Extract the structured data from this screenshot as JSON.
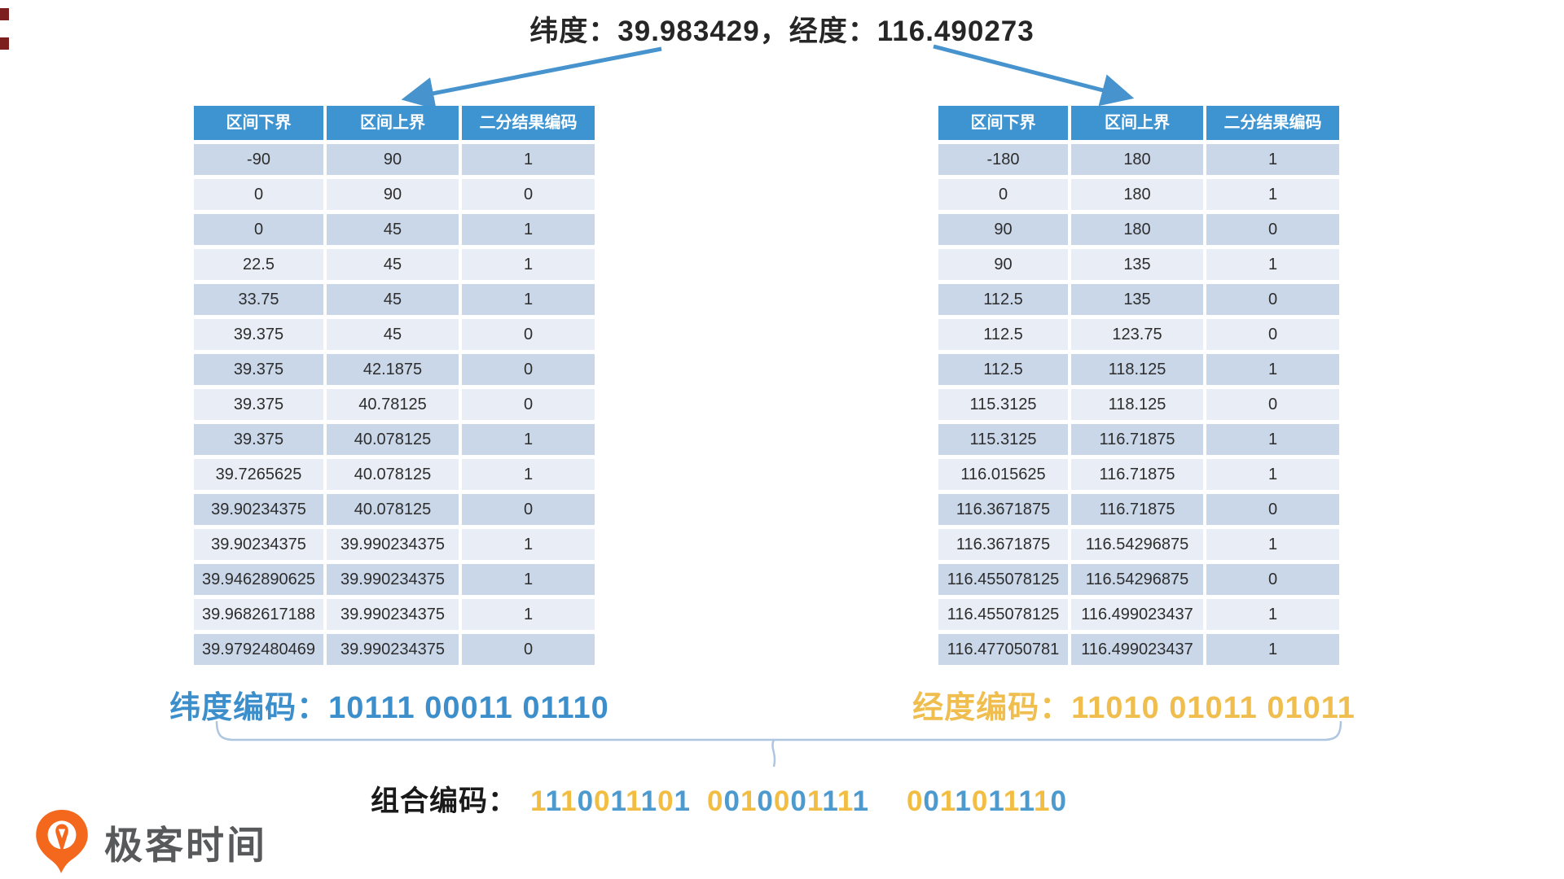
{
  "title": "纬度：39.983429，经度：116.490273",
  "table_headers": [
    "区间下界",
    "区间上界",
    "二分结果编码"
  ],
  "latitude_table": {
    "rows": [
      [
        "-90",
        "90",
        "1"
      ],
      [
        "0",
        "90",
        "0"
      ],
      [
        "0",
        "45",
        "1"
      ],
      [
        "22.5",
        "45",
        "1"
      ],
      [
        "33.75",
        "45",
        "1"
      ],
      [
        "39.375",
        "45",
        "0"
      ],
      [
        "39.375",
        "42.1875",
        "0"
      ],
      [
        "39.375",
        "40.78125",
        "0"
      ],
      [
        "39.375",
        "40.078125",
        "1"
      ],
      [
        "39.7265625",
        "40.078125",
        "1"
      ],
      [
        "39.90234375",
        "40.078125",
        "0"
      ],
      [
        "39.90234375",
        "39.990234375",
        "1"
      ],
      [
        "39.9462890625",
        "39.990234375",
        "1"
      ],
      [
        "39.9682617188",
        "39.990234375",
        "1"
      ],
      [
        "39.9792480469",
        "39.990234375",
        "0"
      ]
    ]
  },
  "longitude_table": {
    "rows": [
      [
        "-180",
        "180",
        "1"
      ],
      [
        "0",
        "180",
        "1"
      ],
      [
        "90",
        "180",
        "0"
      ],
      [
        "90",
        "135",
        "1"
      ],
      [
        "112.5",
        "135",
        "0"
      ],
      [
        "112.5",
        "123.75",
        "0"
      ],
      [
        "112.5",
        "118.125",
        "1"
      ],
      [
        "115.3125",
        "118.125",
        "0"
      ],
      [
        "115.3125",
        "116.71875",
        "1"
      ],
      [
        "116.015625",
        "116.71875",
        "1"
      ],
      [
        "116.3671875",
        "116.71875",
        "0"
      ],
      [
        "116.3671875",
        "116.54296875",
        "1"
      ],
      [
        "116.455078125",
        "116.54296875",
        "0"
      ],
      [
        "116.455078125",
        "116.499023437",
        "1"
      ],
      [
        "116.477050781",
        "116.499023437",
        "1"
      ]
    ]
  },
  "latitude_code": "纬度编码：10111 00011 01110",
  "longitude_code": "经度编码：11010 01011 01011",
  "combined": {
    "label": "组合编码：",
    "groups": [
      {
        "bits": "1110011101",
        "srcs": [
          "lon",
          "lat",
          "lon",
          "lat",
          "lon",
          "lat",
          "lon",
          "lat",
          "lon",
          "lat"
        ]
      },
      {
        "bits": "0010001111",
        "srcs": [
          "lon",
          "lat",
          "lon",
          "lat",
          "lon",
          "lat",
          "lon",
          "lat",
          "lon",
          "lat"
        ]
      },
      {
        "bits": "0011011110",
        "srcs": [
          "lon",
          "lat",
          "lon",
          "lat",
          "lon",
          "lat",
          "lon",
          "lat",
          "lon",
          "lat"
        ]
      }
    ]
  },
  "logo": {
    "text": "极客时间",
    "icon": "geektime-pin-icon"
  },
  "colors": {
    "header_blue": "#3E94D1",
    "row_dark": "#CAD7E9",
    "row_light": "#E9EDF5",
    "arrow_blue": "#4693CE",
    "latitude_blue": "#3D8FCC",
    "longitude_gold": "#EFBE4E",
    "bit_longitude": "#F2BD43",
    "bit_latitude": "#4D9ACF",
    "brace_blue": "#AEC6DF",
    "logo_orange": "#F4681D",
    "logo_text_gray": "#58595B"
  }
}
